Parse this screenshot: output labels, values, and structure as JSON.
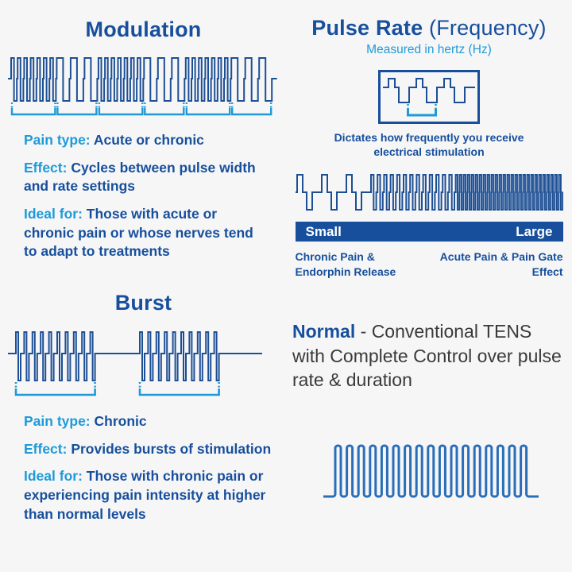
{
  "palette": {
    "background": "#f6f6f7",
    "navy": "#174f9c",
    "light_blue": "#1e9ad8",
    "wave_navy": "#1d4f94",
    "normal_wave_blue": "#2a6db8",
    "body_gray": "#3a3a3a",
    "white": "#ffffff"
  },
  "modulation": {
    "title": "Modulation",
    "pain_type_label": "Pain type:",
    "pain_type_value": "Acute or chronic",
    "effect_label": "Effect:",
    "effect_value": "Cycles between pulse width and rate settings",
    "ideal_label": "Ideal for:",
    "ideal_value": "Those with acute or chronic pain or whose nerves tend to adapt to treatments",
    "waveform": "modulated-biphasic-pulse-train-with-interval-brackets"
  },
  "pulse_rate": {
    "title_bold": "Pulse Rate",
    "title_regular": "(Frequency)",
    "subtitle": "Measured in hertz (Hz)",
    "caption": "Dictates how frequently you receive electrical stimulation",
    "scale_left": "Small",
    "scale_right": "Large",
    "left_label": "Chronic Pain & Endorphin Release",
    "right_label": "Acute Pain & Pain Gate Effect",
    "boxed_waveform": "biphasic-pulse-period-with-bracket",
    "sweep_waveform": "low-to-high-frequency-sweep"
  },
  "burst": {
    "title": "Burst",
    "pain_type_label": "Pain type:",
    "pain_type_value": "Chronic",
    "effect_label": "Effect:",
    "effect_value": "Provides bursts of stimulation",
    "ideal_label": "Ideal for:",
    "ideal_value": "Those with chronic pain or experiencing pain intensity at higher than normal levels",
    "waveform": "two-burst-pulse-groups-with-brackets"
  },
  "normal": {
    "title": "Normal",
    "description": "- Conventional TENS with Complete Control over pulse rate & duration",
    "waveform": "uniform-square-pulse-train"
  }
}
